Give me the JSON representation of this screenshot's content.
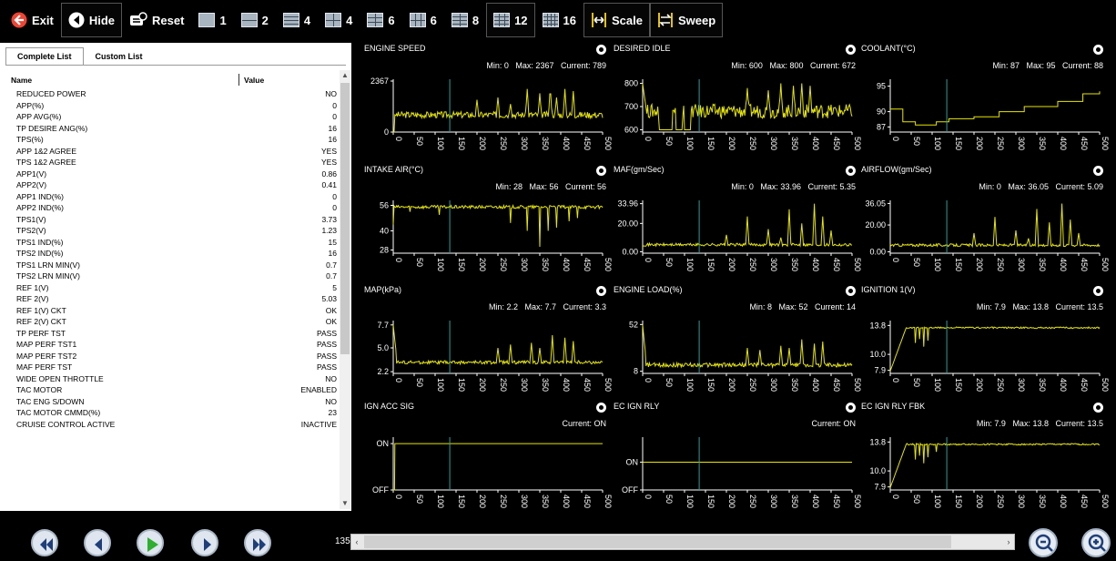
{
  "toolbar": {
    "exit_label": "Exit",
    "hide_label": "Hide",
    "reset_label": "Reset",
    "layouts": [
      "1",
      "2",
      "4",
      "4",
      "6",
      "6",
      "8",
      "12",
      "16"
    ],
    "scale_label": "Scale",
    "sweep_label": "Sweep"
  },
  "list": {
    "tabs": [
      "Complete List",
      "Custom List"
    ],
    "col_name": "Name",
    "col_value": "Value",
    "rows": [
      {
        "name": "REDUCED POWER",
        "value": "NO"
      },
      {
        "name": "APP(%)",
        "value": "0"
      },
      {
        "name": "APP AVG(%)",
        "value": "0"
      },
      {
        "name": "TP DESIRE ANG(%)",
        "value": "16"
      },
      {
        "name": "TPS(%)",
        "value": "16"
      },
      {
        "name": "APP 1&2 AGREE",
        "value": "YES"
      },
      {
        "name": "TPS 1&2 AGREE",
        "value": "YES"
      },
      {
        "name": "APP1(V)",
        "value": "0.86"
      },
      {
        "name": "APP2(V)",
        "value": "0.41"
      },
      {
        "name": "APP1 IND(%)",
        "value": "0"
      },
      {
        "name": "APP2 IND(%)",
        "value": "0"
      },
      {
        "name": "TPS1(V)",
        "value": "3.73"
      },
      {
        "name": "TPS2(V)",
        "value": "1.23"
      },
      {
        "name": "TPS1 IND(%)",
        "value": "15"
      },
      {
        "name": "TPS2 IND(%)",
        "value": "16"
      },
      {
        "name": "TPS1 LRN MIN(V)",
        "value": "0.7"
      },
      {
        "name": "TPS2 LRN MIN(V)",
        "value": "0.7"
      },
      {
        "name": "REF 1(V)",
        "value": "5"
      },
      {
        "name": "REF 2(V)",
        "value": "5.03"
      },
      {
        "name": "REF 1(V) CKT",
        "value": "OK"
      },
      {
        "name": "REF 2(V) CKT",
        "value": "OK"
      },
      {
        "name": "TP PERF TST",
        "value": "PASS"
      },
      {
        "name": "MAP PERF TST1",
        "value": "PASS"
      },
      {
        "name": "MAP PERF TST2",
        "value": "PASS"
      },
      {
        "name": "MAF PERF TST",
        "value": "PASS"
      },
      {
        "name": "WIDE OPEN THROTTLE",
        "value": "NO"
      },
      {
        "name": "TAC MOTOR",
        "value": "ENABLED"
      },
      {
        "name": "TAC ENG S/DOWN",
        "value": "NO"
      },
      {
        "name": "TAC MOTOR CMMD(%)",
        "value": "23"
      },
      {
        "name": "CRUISE CONTROL ACTIVE",
        "value": "INACTIVE"
      }
    ]
  },
  "charts": [
    {
      "title": "ENGINE SPEED",
      "stats": "Min: 0   Max: 2367   Current: 789",
      "y_ticks": [
        "2367",
        "0"
      ],
      "y_range": [
        0,
        2367
      ],
      "base": 800,
      "noise": 150,
      "spikes": [
        [
          200,
          1500
        ],
        [
          250,
          1600
        ],
        [
          280,
          1300
        ],
        [
          320,
          2000
        ],
        [
          350,
          1800
        ],
        [
          375,
          2100
        ],
        [
          390,
          1600
        ],
        [
          410,
          2000
        ],
        [
          430,
          1900
        ]
      ],
      "start_drop": true
    },
    {
      "title": "DESIRED IDLE",
      "stats": "Min: 600   Max: 800   Current: 672",
      "y_ticks": [
        "800",
        "700",
        "600"
      ],
      "y_range": [
        590,
        810
      ],
      "base": 680,
      "noise": 30,
      "spikes": [
        [
          250,
          780
        ],
        [
          300,
          770
        ],
        [
          330,
          800
        ],
        [
          360,
          790
        ],
        [
          380,
          800
        ],
        [
          400,
          790
        ]
      ],
      "square_dips": [
        [
          40,
          70
        ],
        [
          80,
          95
        ],
        [
          100,
          115
        ]
      ],
      "start_high": true
    },
    {
      "title": "COOLANT(°C)",
      "stats": "Min: 87   Max: 95   Current: 88",
      "y_ticks": [
        "95",
        "90",
        "87"
      ],
      "y_range": [
        86,
        96
      ],
      "staircase": [
        [
          0,
          90.5
        ],
        [
          30,
          88
        ],
        [
          60,
          87.4
        ],
        [
          110,
          88
        ],
        [
          140,
          88.6
        ],
        [
          200,
          89
        ],
        [
          260,
          90
        ],
        [
          320,
          91
        ],
        [
          400,
          92
        ],
        [
          460,
          93.5
        ],
        [
          500,
          94
        ]
      ]
    },
    {
      "title": "INTAKE AIR(°C)",
      "stats": "Min: 28   Max: 56   Current: 56",
      "y_ticks": [
        "56",
        "40",
        "28"
      ],
      "y_range": [
        26,
        58
      ],
      "base": 55,
      "noise": 1,
      "dips": [
        [
          0,
          44
        ],
        [
          40,
          52
        ],
        [
          110,
          50
        ],
        [
          280,
          45
        ],
        [
          320,
          40
        ],
        [
          350,
          30
        ],
        [
          370,
          40
        ],
        [
          390,
          42
        ],
        [
          420,
          46
        ],
        [
          440,
          48
        ]
      ]
    },
    {
      "title": "MAF(gm/Sec)",
      "stats": "Min: 0   Max: 33.96   Current: 5.35",
      "y_ticks": [
        "33.96",
        "20.00",
        "0.00"
      ],
      "y_range": [
        -1,
        35
      ],
      "base": 5,
      "noise": 1,
      "spikes": [
        [
          200,
          12
        ],
        [
          250,
          25
        ],
        [
          300,
          16
        ],
        [
          330,
          10
        ],
        [
          350,
          30
        ],
        [
          380,
          20
        ],
        [
          410,
          34
        ],
        [
          430,
          25
        ],
        [
          450,
          15
        ]
      ]
    },
    {
      "title": "AIRFLOW(gm/Sec)",
      "stats": "Min: 0   Max: 36.05   Current: 5.09",
      "y_ticks": [
        "36.05",
        "20.00",
        "0.00"
      ],
      "y_range": [
        -1,
        37
      ],
      "base": 5,
      "noise": 1,
      "spikes": [
        [
          200,
          14
        ],
        [
          250,
          26
        ],
        [
          300,
          16
        ],
        [
          330,
          10
        ],
        [
          350,
          32
        ],
        [
          380,
          22
        ],
        [
          410,
          36
        ],
        [
          430,
          24
        ],
        [
          450,
          14
        ]
      ]
    },
    {
      "title": "MAP(kPa)",
      "stats": "Min: 2.2   Max: 7.7   Current: 3.3",
      "y_ticks": [
        "7.7",
        "5.0",
        "2.2"
      ],
      "y_range": [
        2,
        8
      ],
      "base": 3.3,
      "noise": 0.2,
      "spikes": [
        [
          250,
          5
        ],
        [
          280,
          5.4
        ],
        [
          330,
          5.6
        ],
        [
          350,
          5
        ],
        [
          380,
          6.5
        ],
        [
          410,
          6.2
        ],
        [
          430,
          5.8
        ]
      ],
      "start_high": true
    },
    {
      "title": "ENGINE LOAD(%)",
      "stats": "Min: 8   Max: 52   Current: 14",
      "y_ticks": [
        "52",
        "8"
      ],
      "y_range": [
        6,
        54
      ],
      "base": 14,
      "noise": 2,
      "spikes": [
        [
          250,
          30
        ],
        [
          280,
          28
        ],
        [
          330,
          32
        ],
        [
          350,
          30
        ],
        [
          380,
          38
        ],
        [
          410,
          34
        ],
        [
          430,
          36
        ]
      ],
      "start_high": true
    },
    {
      "title": "IGNITION 1(V)",
      "stats": "Min: 7.9   Max: 13.8   Current: 13.5",
      "y_ticks": [
        "13.8",
        "10.0",
        "7.9"
      ],
      "y_range": [
        7.5,
        14.2
      ],
      "base": 13.5,
      "noise": 0.1,
      "ramp": true,
      "dips": [
        [
          60,
          11.5
        ],
        [
          70,
          12
        ],
        [
          80,
          11
        ],
        [
          90,
          11.8
        ]
      ]
    },
    {
      "title": "IGN ACC SIG",
      "stats": "Current: ON",
      "y_ticks": [
        "ON",
        "OFF"
      ],
      "y_range": [
        0,
        1.1
      ],
      "base": 1,
      "noise": 0,
      "start_low": true
    },
    {
      "title": "EC IGN RLY",
      "stats": "Current: ON",
      "y_ticks": [
        "ON",
        "OFF"
      ],
      "y_range": [
        0,
        1.1
      ],
      "base": 0.6,
      "noise": 0,
      "flat": true
    },
    {
      "title": "EC IGN RLY FBK",
      "stats": "Min: 7.9   Max: 13.8   Current: 13.5",
      "y_ticks": [
        "13.8",
        "10.0",
        "7.9"
      ],
      "y_range": [
        7.5,
        14.2
      ],
      "base": 13.5,
      "noise": 0.1,
      "ramp": true,
      "dips": [
        [
          60,
          11.5
        ],
        [
          70,
          12
        ],
        [
          80,
          11
        ],
        [
          90,
          11.8
        ],
        [
          110,
          12.5
        ]
      ]
    }
  ],
  "x_ticks": [
    "0",
    "50",
    "100",
    "150",
    "200",
    "250",
    "300",
    "350",
    "400",
    "450",
    "500"
  ],
  "cursor_x": 135,
  "playback": {
    "position": "135"
  },
  "colors": {
    "trace": "#e6e600",
    "cursor": "#3a9a9a",
    "axis": "#ffffff"
  }
}
